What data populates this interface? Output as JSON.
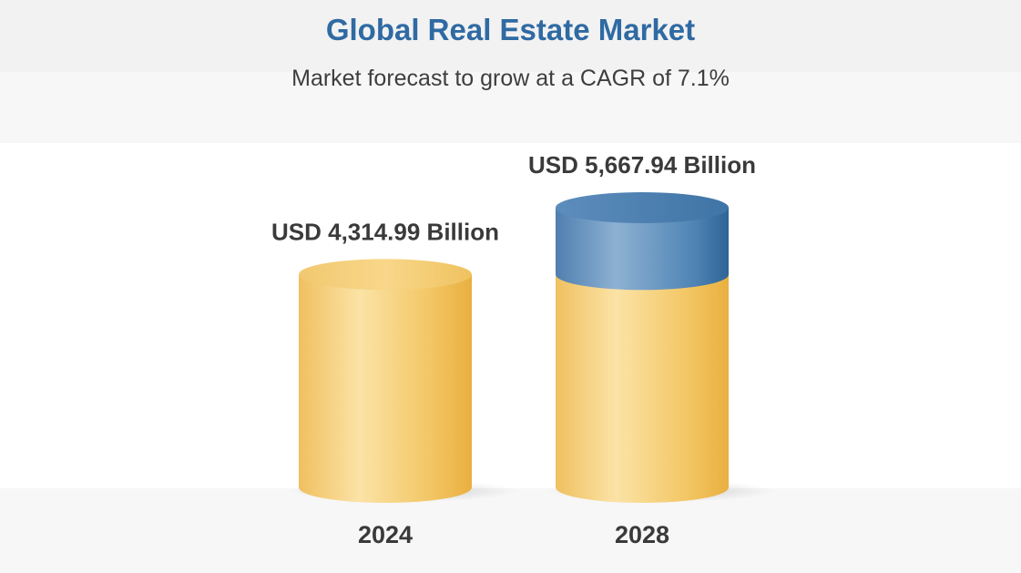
{
  "title": "Global Real Estate Market",
  "subtitle": "Market forecast to grow at a CAGR of 7.1%",
  "chart_data": {
    "type": "bar",
    "categories": [
      "2024",
      "2028"
    ],
    "values": [
      4314.99,
      5667.94
    ],
    "value_labels": [
      "USD 4,314.99 Billion",
      "USD 5,667.94 Billion"
    ],
    "colors": {
      "base": "#f2c15a",
      "growth": "#5f8fba"
    }
  }
}
